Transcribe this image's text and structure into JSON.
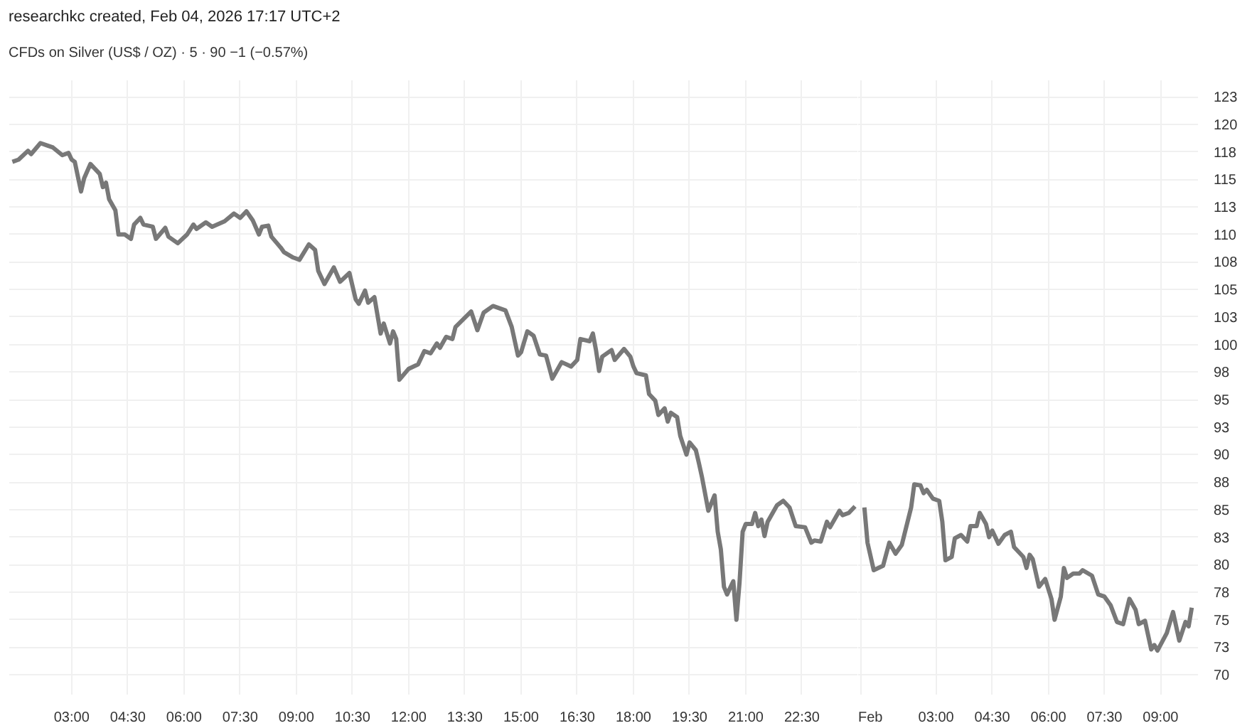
{
  "chart_data": [
    {
      "type": "line",
      "title": "researchkc created, Feb 04, 2026 17:17 UTC+2",
      "subtitle": "CFDs on Silver (US$ / OZ) · 5 · 90 −1 (−0.57%)",
      "tick_labels": "x",
      "xlim": [
        "2026-01-30T01:20",
        "2026-01-31T00:00"
      ],
      "xticks": [
        {
          "value": "2026-01-30T03:00",
          "label": "03:00"
        },
        {
          "value": "2026-01-30T04:30",
          "label": "04:30"
        },
        {
          "value": "2026-01-30T06:00",
          "label": "06:00"
        },
        {
          "value": "2026-01-30T07:30",
          "label": "07:30"
        },
        {
          "value": "2026-01-30T09:00",
          "label": "09:00"
        },
        {
          "value": "2026-01-30T10:30",
          "label": "10:30"
        },
        {
          "value": "2026-01-30T12:00",
          "label": "12:00"
        },
        {
          "value": "2026-01-30T13:30",
          "label": "13:30"
        },
        {
          "value": "2026-01-30T15:00",
          "label": "15:00"
        },
        {
          "value": "2026-01-30T16:30",
          "label": "16:30"
        },
        {
          "value": "2026-01-30T18:00",
          "label": "18:00"
        },
        {
          "value": "2026-01-30T19:30",
          "label": "19:30"
        },
        {
          "value": "2026-01-30T21:00",
          "label": "21:00"
        },
        {
          "value": "2026-01-30T22:30",
          "label": "22:30"
        }
      ],
      "ylim": [
        68.2,
        124
      ],
      "yticks": [
        70,
        72.5,
        75,
        77.5,
        80,
        82.5,
        85,
        87.5,
        90,
        92.5,
        95,
        97.5,
        100,
        102.5,
        105,
        107.5,
        110,
        112.5,
        115,
        117.5,
        120,
        122.5
      ],
      "grid": true,
      "series": [
        {
          "color": "#787878",
          "x": [
            "2026-01-30T01:25",
            "2026-01-30T01:35",
            "2026-01-30T01:50",
            "2026-01-30T01:55",
            "2026-01-30T02:10",
            "2026-01-30T02:20",
            "2026-01-30T02:30",
            "2026-01-30T02:45",
            "2026-01-30T02:55",
            "2026-01-30T03:00",
            "2026-01-30T03:05",
            "2026-01-30T03:15",
            "2026-01-30T03:20",
            "2026-01-30T03:30",
            "2026-01-30T03:45",
            "2026-01-30T03:50",
            "2026-01-30T03:55",
            "2026-01-30T04:00",
            "2026-01-30T04:10",
            "2026-01-30T04:15",
            "2026-01-30T04:25",
            "2026-01-30T04:35",
            "2026-01-30T04:40",
            "2026-01-30T04:50",
            "2026-01-30T04:55",
            "2026-01-30T05:10",
            "2026-01-30T05:15",
            "2026-01-30T05:30",
            "2026-01-30T05:35",
            "2026-01-30T05:50",
            "2026-01-30T06:05",
            "2026-01-30T06:15",
            "2026-01-30T06:20",
            "2026-01-30T06:35",
            "2026-01-30T06:45",
            "2026-01-30T07:05",
            "2026-01-30T07:20",
            "2026-01-30T07:30",
            "2026-01-30T07:40",
            "2026-01-30T07:50",
            "2026-01-30T08:00",
            "2026-01-30T08:05",
            "2026-01-30T08:15",
            "2026-01-30T08:20",
            "2026-01-30T08:35",
            "2026-01-30T08:40",
            "2026-01-30T08:55",
            "2026-01-30T09:05",
            "2026-01-30T09:20",
            "2026-01-30T09:30",
            "2026-01-30T09:35",
            "2026-01-30T09:45",
            "2026-01-30T10:00",
            "2026-01-30T10:10",
            "2026-01-30T10:25",
            "2026-01-30T10:35",
            "2026-01-30T10:40",
            "2026-01-30T10:50",
            "2026-01-30T10:55",
            "2026-01-30T11:05",
            "2026-01-30T11:15",
            "2026-01-30T11:20",
            "2026-01-30T11:30",
            "2026-01-30T11:35",
            "2026-01-30T11:40",
            "2026-01-30T11:45",
            "2026-01-30T12:00",
            "2026-01-30T12:15",
            "2026-01-30T12:25",
            "2026-01-30T12:35",
            "2026-01-30T12:45",
            "2026-01-30T12:50",
            "2026-01-30T13:00",
            "2026-01-30T13:10",
            "2026-01-30T13:15",
            "2026-01-30T13:40",
            "2026-01-30T13:50",
            "2026-01-30T14:00",
            "2026-01-30T14:15",
            "2026-01-30T14:35",
            "2026-01-30T14:45",
            "2026-01-30T14:55",
            "2026-01-30T15:00",
            "2026-01-30T15:10",
            "2026-01-30T15:20",
            "2026-01-30T15:30",
            "2026-01-30T15:40",
            "2026-01-30T15:50",
            "2026-01-30T16:05",
            "2026-01-30T16:20",
            "2026-01-30T16:30",
            "2026-01-30T16:35",
            "2026-01-30T16:50",
            "2026-01-30T16:55",
            "2026-01-30T17:00",
            "2026-01-30T17:05",
            "2026-01-30T17:10",
            "2026-01-30T17:25",
            "2026-01-30T17:30",
            "2026-01-30T17:45",
            "2026-01-30T17:55",
            "2026-01-30T18:00",
            "2026-01-30T18:05",
            "2026-01-30T18:20",
            "2026-01-30T18:25",
            "2026-01-30T18:35",
            "2026-01-30T18:40",
            "2026-01-30T18:50",
            "2026-01-30T18:55",
            "2026-01-30T19:00",
            "2026-01-30T19:10",
            "2026-01-30T19:15",
            "2026-01-30T19:25",
            "2026-01-30T19:30",
            "2026-01-30T19:40",
            "2026-01-30T19:45",
            "2026-01-30T19:50",
            "2026-01-30T20:00",
            "2026-01-30T20:10",
            "2026-01-30T20:15",
            "2026-01-30T20:20",
            "2026-01-30T20:25",
            "2026-01-30T20:30",
            "2026-01-30T20:40",
            "2026-01-30T20:45",
            "2026-01-30T20:50",
            "2026-01-30T20:55",
            "2026-01-30T21:00",
            "2026-01-30T21:10",
            "2026-01-30T21:15",
            "2026-01-30T21:20",
            "2026-01-30T21:25",
            "2026-01-30T21:30",
            "2026-01-30T21:35",
            "2026-01-30T21:50",
            "2026-01-30T22:00",
            "2026-01-30T22:10",
            "2026-01-30T22:20",
            "2026-01-30T22:35",
            "2026-01-30T22:45",
            "2026-01-30T22:50",
            "2026-01-30T23:00",
            "2026-01-30T23:10",
            "2026-01-30T23:15",
            "2026-01-30T23:30",
            "2026-01-30T23:35",
            "2026-01-30T23:45",
            "2026-01-30T23:55"
          ],
          "values": [
            116.6,
            116.8,
            117.6,
            117.3,
            118.3,
            118.1,
            117.9,
            117.2,
            117.4,
            116.8,
            116.6,
            113.9,
            115.1,
            116.4,
            115.5,
            114.3,
            114.7,
            113.2,
            112.2,
            110.0,
            110.0,
            109.6,
            110.9,
            111.5,
            110.9,
            110.7,
            109.6,
            110.6,
            109.8,
            109.2,
            110.0,
            110.9,
            110.5,
            111.1,
            110.7,
            111.2,
            111.9,
            111.5,
            112.1,
            111.3,
            110.0,
            110.7,
            110.8,
            109.8,
            108.8,
            108.4,
            107.9,
            107.7,
            109.1,
            108.6,
            106.7,
            105.5,
            107.0,
            105.7,
            106.5,
            104.1,
            103.7,
            104.9,
            103.8,
            104.3,
            101.0,
            101.9,
            100.1,
            101.2,
            100.5,
            96.8,
            97.8,
            98.2,
            99.4,
            99.2,
            100.1,
            99.7,
            100.7,
            100.5,
            101.6,
            103.0,
            101.3,
            102.9,
            103.5,
            103.1,
            101.6,
            99.0,
            99.3,
            101.2,
            100.8,
            99.1,
            99.0,
            96.9,
            98.4,
            98.0,
            98.6,
            100.5,
            100.3,
            101.0,
            99.5,
            97.6,
            98.9,
            99.5,
            98.6,
            99.6,
            98.9,
            98.0,
            97.4,
            97.2,
            95.5,
            94.9,
            93.6,
            94.2,
            93.0,
            93.8,
            93.4,
            91.7,
            90.0,
            91.1,
            90.4,
            89.2,
            87.9,
            84.9,
            86.3,
            83.0,
            81.4,
            78.0,
            77.3,
            78.5,
            75.0,
            78.4,
            83.0,
            83.7,
            83.7,
            84.7,
            83.5,
            84.1,
            82.6,
            83.9,
            85.4,
            85.8,
            85.2,
            83.5,
            83.4,
            82.0,
            82.2,
            82.1,
            83.9,
            83.4,
            84.9,
            84.5,
            84.7,
            85.3
          ]
        }
      ]
    },
    {
      "type": "line",
      "xlim": [
        "2026-02-02T00:55",
        "2026-02-02T10:00"
      ],
      "xticks": [
        {
          "value": "2026-02-02T01:00",
          "label": "Feb"
        },
        {
          "value": "2026-02-02T03:00",
          "label": "03:00"
        },
        {
          "value": "2026-02-02T04:30",
          "label": "04:30"
        },
        {
          "value": "2026-02-02T06:00",
          "label": "06:00"
        },
        {
          "value": "2026-02-02T07:30",
          "label": "07:30"
        },
        {
          "value": "2026-02-02T09:00",
          "label": "09:00"
        }
      ],
      "ylim": [
        68.2,
        124
      ],
      "yticks": [
        70,
        {
          "value": 72.5,
          "label": "73"
        },
        75,
        {
          "value": 77.5,
          "label": "78"
        },
        80,
        {
          "value": 82.5,
          "label": "83"
        },
        85,
        {
          "value": 87.5,
          "label": "88"
        },
        90,
        {
          "value": 92.5,
          "label": "93"
        },
        95,
        {
          "value": 97.5,
          "label": "98"
        },
        100,
        {
          "value": 102.5,
          "label": "103"
        },
        105,
        {
          "value": 107.5,
          "label": "108"
        },
        110,
        {
          "value": 112.5,
          "label": "113"
        },
        115,
        {
          "value": 117.5,
          "label": "118"
        },
        120,
        {
          "value": 122.5,
          "label": "123"
        }
      ],
      "grid": true,
      "series": [
        {
          "color": "#787878",
          "x": [
            "2026-02-02T01:05",
            "2026-02-02T01:10",
            "2026-02-02T01:20",
            "2026-02-02T01:35",
            "2026-02-02T01:45",
            "2026-02-02T01:55",
            "2026-02-02T02:05",
            "2026-02-02T02:20",
            "2026-02-02T02:25",
            "2026-02-02T02:35",
            "2026-02-02T02:40",
            "2026-02-02T02:45",
            "2026-02-02T02:55",
            "2026-02-02T03:05",
            "2026-02-02T03:10",
            "2026-02-02T03:15",
            "2026-02-02T03:25",
            "2026-02-02T03:30",
            "2026-02-02T03:40",
            "2026-02-02T03:50",
            "2026-02-02T03:55",
            "2026-02-02T04:05",
            "2026-02-02T04:10",
            "2026-02-02T04:20",
            "2026-02-02T04:25",
            "2026-02-02T04:30",
            "2026-02-02T04:40",
            "2026-02-02T04:50",
            "2026-02-02T05:00",
            "2026-02-02T05:05",
            "2026-02-02T05:15",
            "2026-02-02T05:20",
            "2026-02-02T05:25",
            "2026-02-02T05:30",
            "2026-02-02T05:35",
            "2026-02-02T05:45",
            "2026-02-02T05:55",
            "2026-02-02T06:05",
            "2026-02-02T06:10",
            "2026-02-02T06:20",
            "2026-02-02T06:25",
            "2026-02-02T06:30",
            "2026-02-02T06:40",
            "2026-02-02T06:50",
            "2026-02-02T06:55",
            "2026-02-02T07:10",
            "2026-02-02T07:20",
            "2026-02-02T07:30",
            "2026-02-02T07:40",
            "2026-02-02T07:50",
            "2026-02-02T08:00",
            "2026-02-02T08:10",
            "2026-02-02T08:20",
            "2026-02-02T08:25",
            "2026-02-02T08:35",
            "2026-02-02T08:45",
            "2026-02-02T08:50",
            "2026-02-02T08:55",
            "2026-02-02T09:10",
            "2026-02-02T09:20",
            "2026-02-02T09:30",
            "2026-02-02T09:40",
            "2026-02-02T09:45",
            "2026-02-02T09:50"
          ],
          "values": [
            85.2,
            82.0,
            79.5,
            79.9,
            82.0,
            81.0,
            81.8,
            85.2,
            87.3,
            87.2,
            86.5,
            86.8,
            86.0,
            85.8,
            83.9,
            80.4,
            80.7,
            82.4,
            82.7,
            82.1,
            83.5,
            83.5,
            84.7,
            83.7,
            82.5,
            83.1,
            81.9,
            82.7,
            83.0,
            81.6,
            81.0,
            80.7,
            79.7,
            80.9,
            80.5,
            78.0,
            78.7,
            76.9,
            75.0,
            77.1,
            79.7,
            78.8,
            79.2,
            79.2,
            79.5,
            79.0,
            77.3,
            77.1,
            76.3,
            74.8,
            74.6,
            76.9,
            75.9,
            74.6,
            74.9,
            72.3,
            72.7,
            72.2,
            73.8,
            75.7,
            73.1,
            74.8,
            74.4,
            76.1
          ]
        }
      ]
    }
  ]
}
